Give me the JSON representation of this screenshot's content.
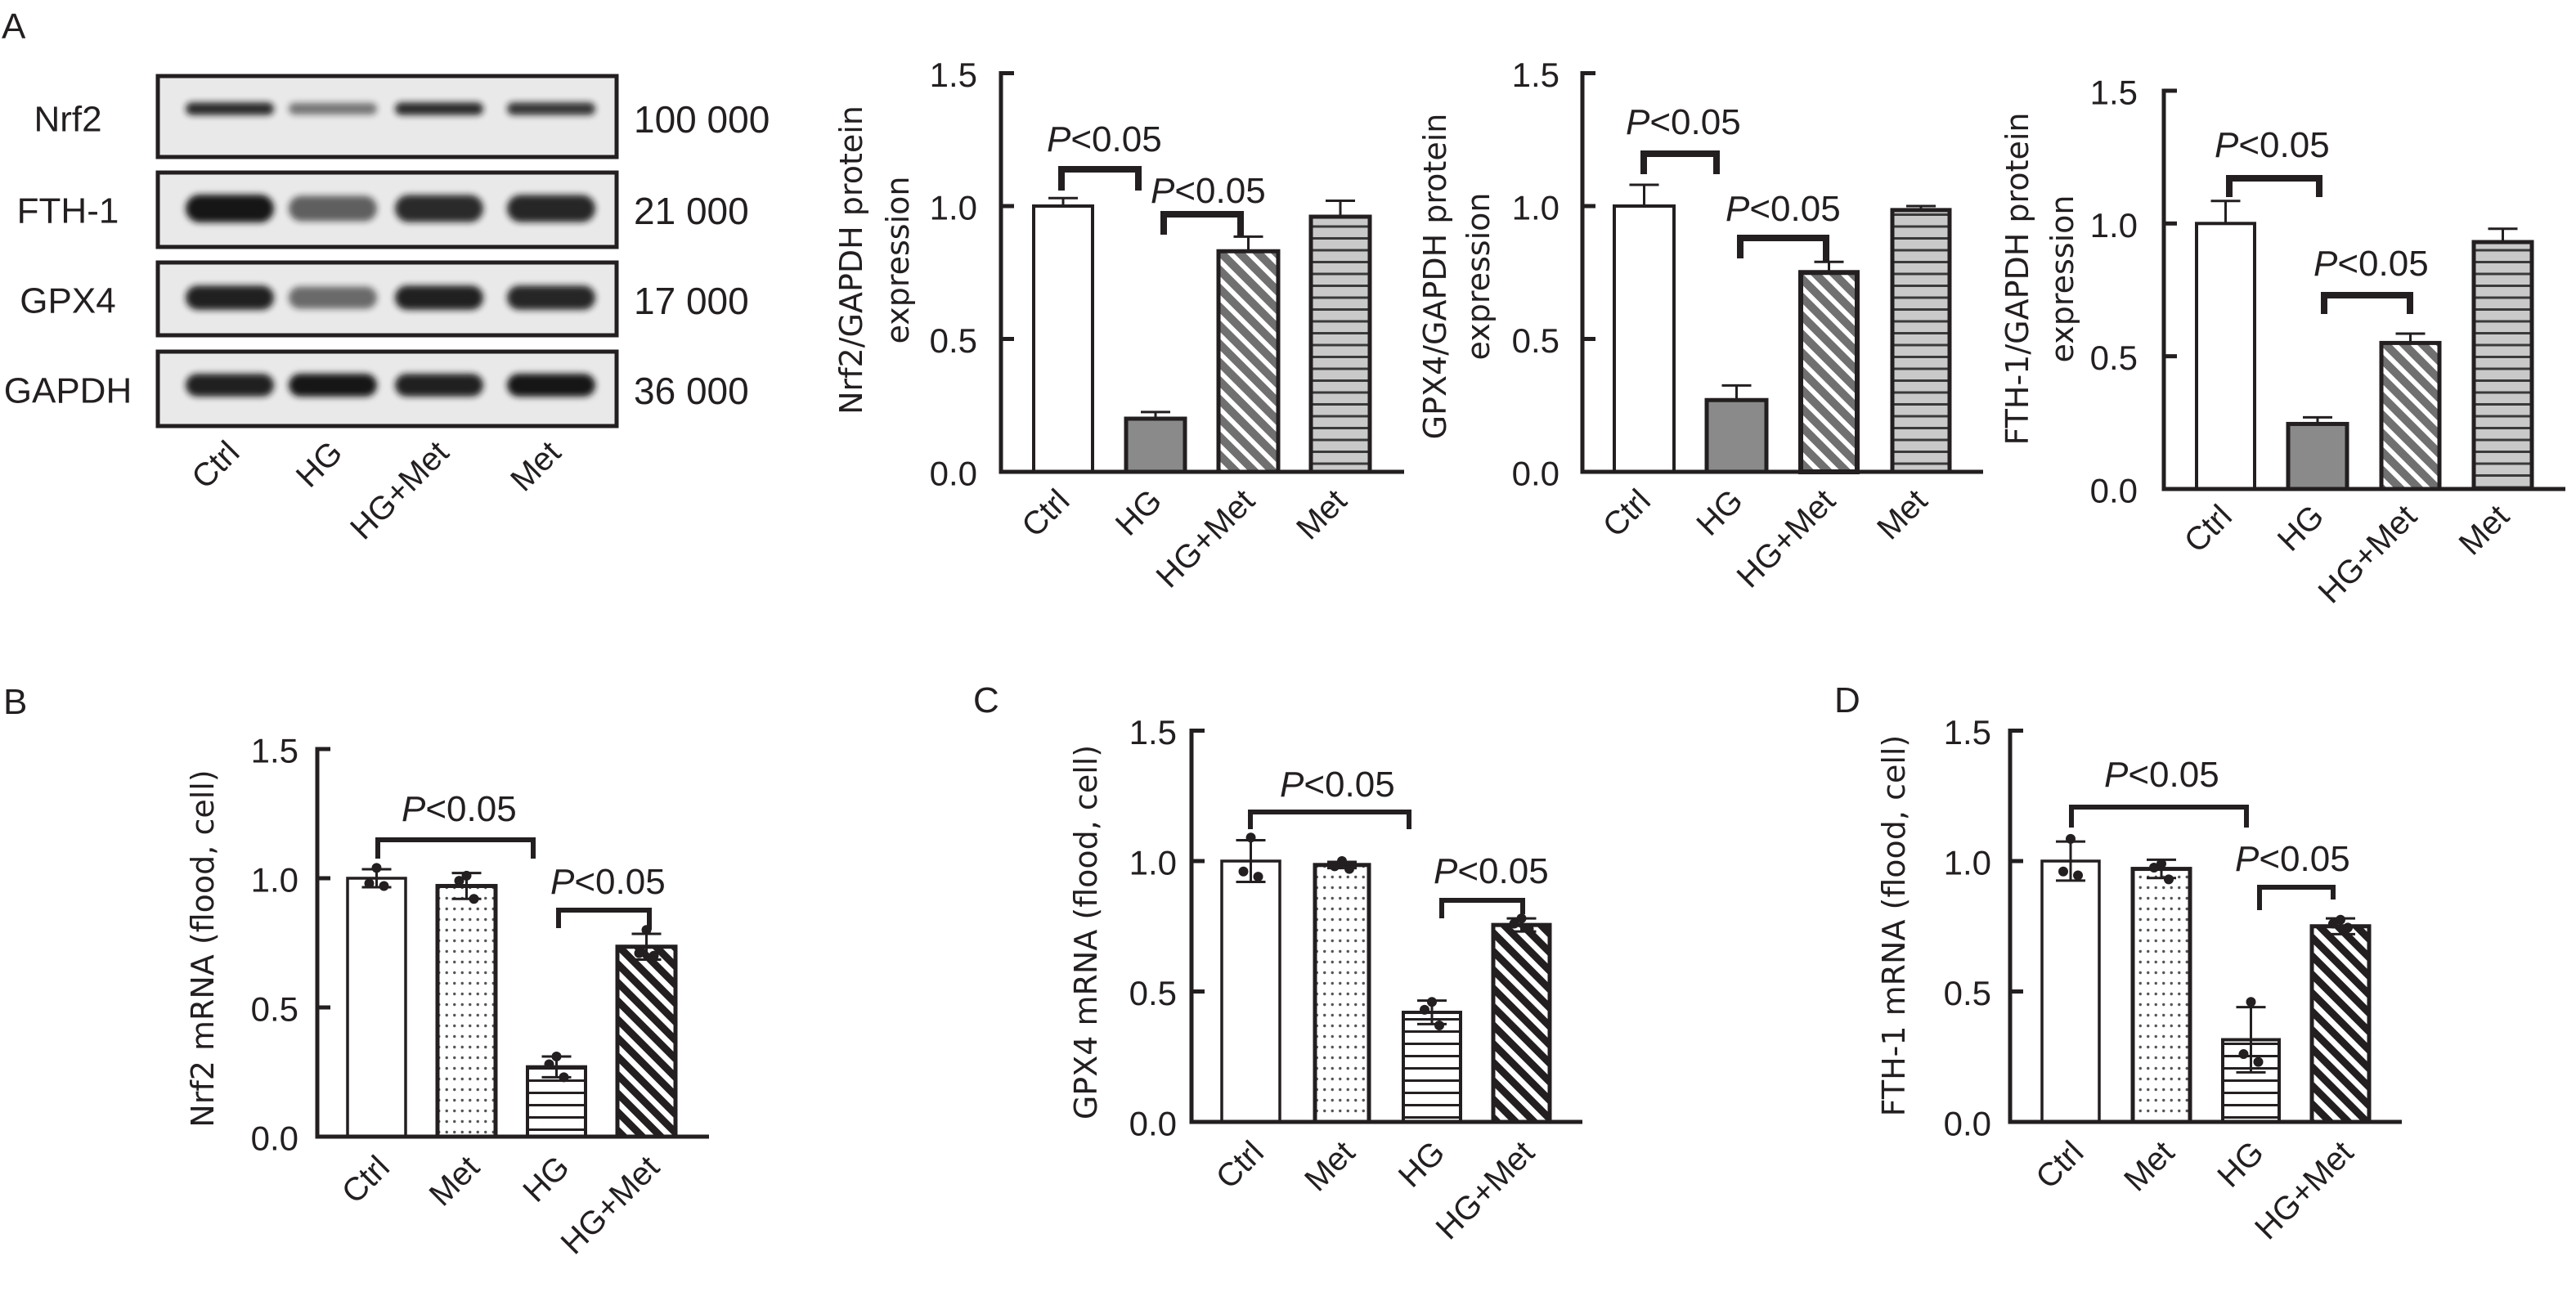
{
  "panels": [
    "A",
    "B",
    "C",
    "D"
  ],
  "colors": {
    "ink": "#231f20",
    "hg_gray": "#8a8a8a",
    "met_gray": "#c9c9c9",
    "blot_bg": "#e9e9e9",
    "band": "#141414"
  },
  "blot": {
    "lanes": [
      "Ctrl",
      "HG",
      "HG+Met",
      "Met"
    ],
    "rows": [
      {
        "protein": "Nrf2",
        "mw": "100 000",
        "band_intensity": [
          0.9,
          0.55,
          0.9,
          0.85
        ]
      },
      {
        "protein": "FTH-1",
        "mw": "21 000",
        "band_intensity": [
          1.0,
          0.65,
          0.9,
          0.92
        ]
      },
      {
        "protein": "GPX4",
        "mw": "17 000",
        "band_intensity": [
          0.95,
          0.6,
          0.95,
          0.92
        ]
      },
      {
        "protein": "GAPDH",
        "mw": "36 000",
        "band_intensity": [
          0.95,
          1.0,
          0.95,
          1.0
        ]
      }
    ]
  },
  "chart_data": [
    {
      "type": "bar",
      "ylabel": [
        "Nrf2/GAPDH protein",
        "expression"
      ],
      "categories": [
        "Ctrl",
        "HG",
        "HG+Met",
        "Met"
      ],
      "values": [
        1.0,
        0.2,
        0.83,
        0.96
      ],
      "error_upper": [
        0.03,
        0.025,
        0.055,
        0.06
      ],
      "ylim": [
        0,
        1.5
      ],
      "yticks": [
        "0.0",
        "0.5",
        "1.0",
        "1.5"
      ],
      "ytick_values": [
        0,
        0.5,
        1.0,
        1.5
      ],
      "grid": false,
      "significance": [
        {
          "between": [
            0,
            1
          ],
          "label_italic": "P",
          "label_rest": "<0.05"
        },
        {
          "between": [
            1,
            2
          ],
          "label_italic": "P",
          "label_rest": "<0.05"
        }
      ]
    },
    {
      "type": "bar",
      "ylabel": [
        "GPX4/GAPDH protein",
        "expression"
      ],
      "categories": [
        "Ctrl",
        "HG",
        "HG+Met",
        "Met"
      ],
      "values": [
        1.0,
        0.27,
        0.75,
        0.985
      ],
      "error_upper": [
        0.08,
        0.055,
        0.04,
        0.015
      ],
      "ylim": [
        0,
        1.5
      ],
      "yticks": [
        "0.0",
        "0.5",
        "1.0",
        "1.5"
      ],
      "ytick_values": [
        0,
        0.5,
        1.0,
        1.5
      ],
      "grid": false,
      "significance": [
        {
          "between": [
            0,
            1
          ],
          "label_italic": "P",
          "label_rest": "<0.05"
        },
        {
          "between": [
            1,
            2
          ],
          "label_italic": "P",
          "label_rest": "<0.05"
        }
      ]
    },
    {
      "type": "bar",
      "ylabel": [
        "FTH-1/GAPDH protein",
        "expression"
      ],
      "categories": [
        "Ctrl",
        "HG",
        "HG+Met",
        "Met"
      ],
      "values": [
        1.0,
        0.245,
        0.55,
        0.93
      ],
      "error_upper": [
        0.085,
        0.025,
        0.035,
        0.05
      ],
      "ylim": [
        0,
        1.5
      ],
      "yticks": [
        "0.0",
        "0.5",
        "1.0",
        "1.5"
      ],
      "ytick_values": [
        0,
        0.5,
        1.0,
        1.5
      ],
      "grid": false,
      "significance": [
        {
          "between": [
            0,
            1
          ],
          "label_italic": "P",
          "label_rest": "<0.05"
        },
        {
          "between": [
            1,
            2
          ],
          "label_italic": "P",
          "label_rest": "<0.05"
        }
      ]
    },
    {
      "type": "bar",
      "ylabel": [
        "Nrf2 mRNA (flood, cell)"
      ],
      "categories": [
        "Ctrl",
        "Met",
        "HG",
        "HG+Met"
      ],
      "values": [
        1.0,
        0.97,
        0.27,
        0.735
      ],
      "sd": [
        0.035,
        0.05,
        0.04,
        0.05
      ],
      "points": [
        [
          1.04,
          0.98,
          0.97
        ],
        [
          1.01,
          0.99,
          0.92
        ],
        [
          0.31,
          0.28,
          0.23
        ],
        [
          0.8,
          0.71,
          0.7
        ]
      ],
      "ylim": [
        0,
        1.5
      ],
      "yticks": [
        "0.0",
        "0.5",
        "1.0",
        "1.5"
      ],
      "ytick_values": [
        0,
        0.5,
        1.0,
        1.5
      ],
      "grid": false,
      "significance": [
        {
          "between": [
            0,
            2
          ],
          "label_italic": "P",
          "label_rest": "<0.05"
        },
        {
          "between": [
            2,
            3
          ],
          "label_italic": "P",
          "label_rest": "<0.05"
        }
      ]
    },
    {
      "type": "bar",
      "ylabel": [
        "GPX4 mRNA (flood, cell)"
      ],
      "categories": [
        "Ctrl",
        "Met",
        "HG",
        "HG+Met"
      ],
      "values": [
        1.0,
        0.985,
        0.42,
        0.755
      ],
      "sd": [
        0.08,
        0.012,
        0.045,
        0.025
      ],
      "points": [
        [
          1.09,
          0.96,
          0.94
        ],
        [
          1.0,
          0.98,
          0.97
        ],
        [
          0.46,
          0.43,
          0.37
        ],
        [
          0.78,
          0.76,
          0.74
        ]
      ],
      "ylim": [
        0,
        1.5
      ],
      "yticks": [
        "0.0",
        "0.5",
        "1.0",
        "1.5"
      ],
      "ytick_values": [
        0,
        0.5,
        1.0,
        1.5
      ],
      "grid": false,
      "significance": [
        {
          "between": [
            0,
            2
          ],
          "label_italic": "P",
          "label_rest": "<0.05"
        },
        {
          "between": [
            2,
            3
          ],
          "label_italic": "P",
          "label_rest": "<0.05"
        }
      ]
    },
    {
      "type": "bar",
      "ylabel": [
        "FTH-1 mRNA (flood, cell)"
      ],
      "categories": [
        "Ctrl",
        "Met",
        "HG",
        "HG+Met"
      ],
      "values": [
        1.0,
        0.97,
        0.315,
        0.75
      ],
      "sd": [
        0.075,
        0.035,
        0.125,
        0.03
      ],
      "points": [
        [
          1.085,
          0.96,
          0.945
        ],
        [
          0.99,
          0.975,
          0.93
        ],
        [
          0.46,
          0.26,
          0.23
        ],
        [
          0.775,
          0.76,
          0.745
        ]
      ],
      "ylim": [
        0,
        1.5
      ],
      "yticks": [
        "0.0",
        "0.5",
        "1.0",
        "1.5"
      ],
      "ytick_values": [
        0,
        0.5,
        1.0,
        1.5
      ],
      "grid": false,
      "significance": [
        {
          "between": [
            0,
            2
          ],
          "label_italic": "P",
          "label_rest": "<0.05"
        },
        {
          "between": [
            2,
            3
          ],
          "label_italic": "P",
          "label_rest": "<0.05"
        }
      ]
    }
  ]
}
